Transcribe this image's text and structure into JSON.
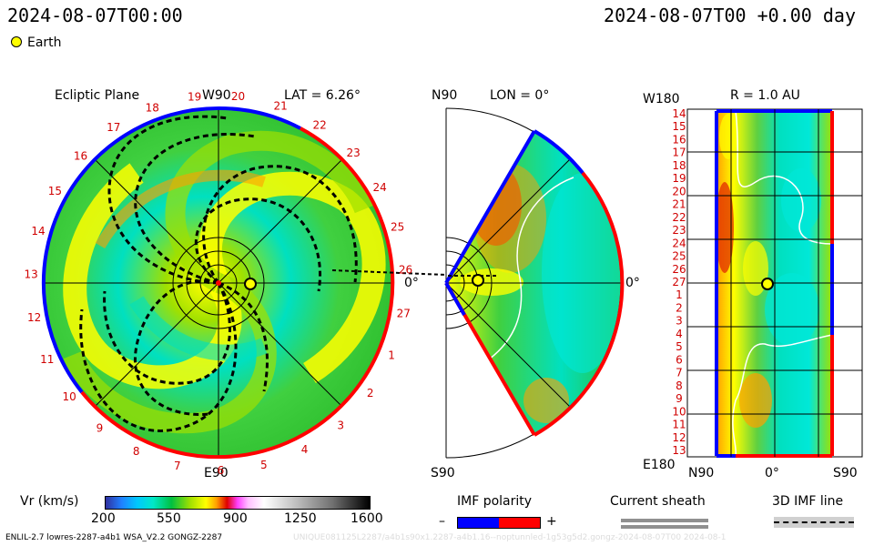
{
  "header": {
    "left_timestamp": "2024-08-07T00:00",
    "right_timestamp": "2024-08-07T00 +0.00 day"
  },
  "legend": {
    "earth_label": "Earth"
  },
  "colors": {
    "imf_negative": "#0000ff",
    "imf_positive": "#ff0000",
    "earth_marker": "#ffff00",
    "sector_label_color": "#d00000"
  },
  "ecliptic_panel": {
    "title": "Ecliptic Plane",
    "top_label": "W90",
    "lat_label": "LAT = 6.26°",
    "bottom_label": "E90",
    "right_label": "0°",
    "sector_numbers": [
      "20",
      "21",
      "22",
      "23",
      "24",
      "25",
      "26",
      "27",
      "1",
      "2",
      "3",
      "4",
      "5",
      "6",
      "7",
      "8",
      "9",
      "10",
      "11",
      "12",
      "13",
      "14",
      "15",
      "16",
      "17",
      "18",
      "19"
    ]
  },
  "meridional_panel": {
    "top_label": "N90",
    "lon_label": "LON = 0°",
    "right_label": "0°",
    "bottom_label": "S90"
  },
  "radial_panel": {
    "top_left_label": "W180",
    "r_label": "R = 1.0 AU",
    "bottom_left_label": "E180",
    "x_labels": [
      "N90",
      "0°",
      "S90"
    ],
    "sector_labels": [
      "14",
      "15",
      "16",
      "17",
      "18",
      "19",
      "20",
      "21",
      "22",
      "23",
      "24",
      "25",
      "26",
      "27",
      "1",
      "2",
      "3",
      "4",
      "5",
      "6",
      "7",
      "8",
      "9",
      "10",
      "11",
      "12",
      "13"
    ]
  },
  "colorbar": {
    "title": "Vr (km/s)",
    "ticks": [
      "200",
      "550",
      "900",
      "1250",
      "1600"
    ]
  },
  "imf_legend": {
    "title": "IMF polarity",
    "minus": "–",
    "plus": "+"
  },
  "current_sheath_legend": {
    "title": "Current sheath"
  },
  "imf_line_legend": {
    "title": "3D IMF line"
  },
  "footer": {
    "model_info": "ENLIL-2.7 lowres-2287-a4b1 WSA_V2.2 GONGZ-2287",
    "faint_info": "UNIQUE081125L2287/a4b1s90x1.2287-a4b1.16--noptunnled-1g53g5d2.gongz-2024-08-07T00   2024-08-1"
  },
  "chart_data": {
    "type": "heatmap",
    "variable": "Vr (km/s)",
    "colorbar_range": [
      200,
      1600
    ],
    "colorbar_ticks": [
      200,
      550,
      900,
      1250,
      1600
    ],
    "timestamp": "2024-08-07T00:00",
    "panels": [
      {
        "title": "Ecliptic Plane",
        "lat": 6.26,
        "earth_longitude": 0
      },
      {
        "lon": 0,
        "latitude_range": [
          -90,
          90
        ]
      },
      {
        "r": 1.0,
        "latitude_range": [
          -90,
          90
        ],
        "longitude_range": [
          -180,
          180
        ]
      }
    ],
    "earth_marker": {
      "r_au": 1.0,
      "lat": 0,
      "lon": 0
    }
  }
}
